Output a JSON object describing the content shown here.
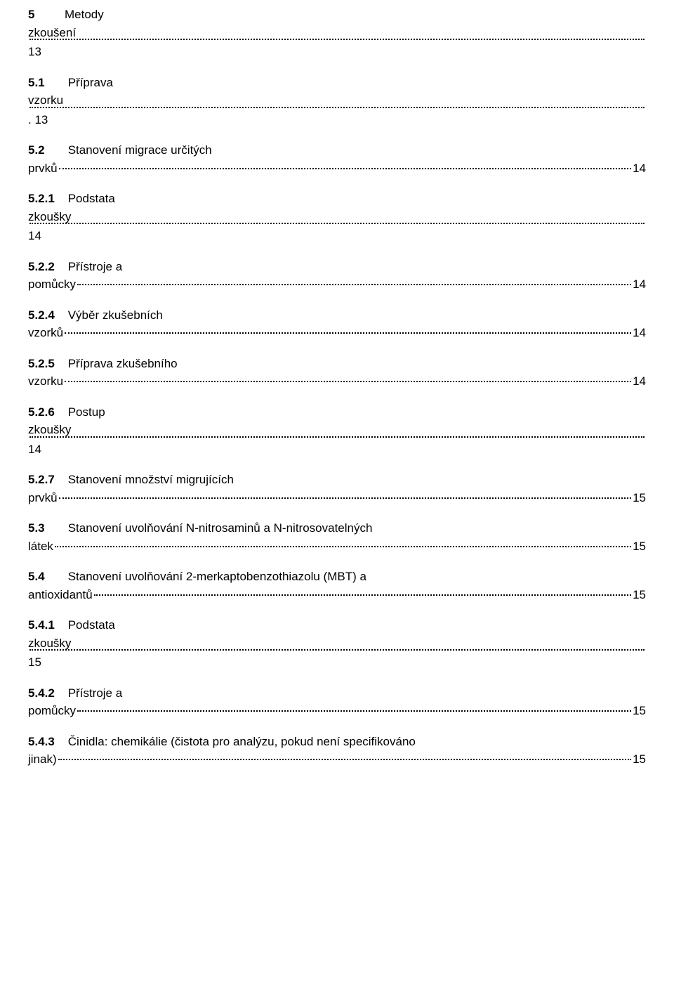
{
  "entries": [
    {
      "num": "5",
      "numBold": true,
      "gap": "         ",
      "title": "Metody",
      "wrap": "zkoušení",
      "dotsPrefix": "",
      "page": "",
      "pageLine3": "13",
      "line3Prefix": ""
    },
    {
      "num": "5.1",
      "numBold": true,
      "gap": "       ",
      "title": "Příprava",
      "wrap": "vzorku",
      "dotsPrefix": "",
      "page": "",
      "pageLine3": ". 13",
      "line3Prefix": ""
    },
    {
      "num": "5.2",
      "numBold": true,
      "gap": "       ",
      "title": "Stanovení migrace určitých",
      "wrap": "prvků",
      "dotsPrefix": "",
      "page": " 14",
      "pageLine3": ""
    },
    {
      "num": "5.2.1",
      "numBold": true,
      "gap": "    ",
      "title": "Podstata",
      "wrap": "zkoušky",
      "dotsPrefix": "",
      "page": "",
      "pageLine3": " 14",
      "line3Prefix": ""
    },
    {
      "num": "5.2.2",
      "numBold": true,
      "gap": "    ",
      "title": "Přístroje a",
      "wrap": "pomůcky",
      "dotsPrefix": "",
      "page": " 14",
      "pageLine3": ""
    },
    {
      "num": "5.2.4",
      "numBold": true,
      "gap": "    ",
      "title": "Výběr zkušebních",
      "wrap": "vzorků",
      "dotsPrefix": "",
      "page": " 14",
      "pageLine3": ""
    },
    {
      "num": "5.2.5",
      "numBold": true,
      "gap": "    ",
      "title": "Příprava zkušebního",
      "wrap": "vzorku",
      "dotsPrefix": "",
      "page": " 14",
      "pageLine3": ""
    },
    {
      "num": "5.2.6",
      "numBold": true,
      "gap": "    ",
      "title": "Postup",
      "wrap": "zkoušky",
      "dotsPrefix": "",
      "page": "",
      "pageLine3": "14",
      "line3Prefix": ""
    },
    {
      "num": "5.2.7",
      "numBold": true,
      "gap": "    ",
      "title": "Stanovení množství migrujících",
      "wrap": "prvků",
      "dotsPrefix": "",
      "page": " 15",
      "pageLine3": ""
    },
    {
      "num": "5.3",
      "numBold": true,
      "gap": "       ",
      "title": "Stanovení uvolňování N-nitrosaminů a N-nitrosovatelných",
      "wrap": "látek",
      "dotsPrefix": "",
      "page": " 15",
      "pageLine3": ""
    },
    {
      "num": "5.4",
      "numBold": true,
      "gap": "       ",
      "title": "Stanovení uvolňování 2-merkaptobenzothiazolu (MBT) a",
      "wrap": "antioxidantů",
      "dotsPrefix": "",
      "page": " 15",
      "pageLine3": ""
    },
    {
      "num": "5.4.1",
      "numBold": true,
      "gap": "    ",
      "title": "Podstata",
      "wrap": "zkoušky",
      "dotsPrefix": "",
      "page": "",
      "pageLine3": "15",
      "line3Prefix": ""
    },
    {
      "num": "5.4.2",
      "numBold": true,
      "gap": "    ",
      "title": "Přístroje a",
      "wrap": "pomůcky",
      "dotsPrefix": "",
      "page": " 15",
      "pageLine3": ""
    },
    {
      "num": "5.4.3",
      "numBold": true,
      "gap": "    ",
      "title": "Činidla: chemikálie (čistota pro analýzu, pokud není specifikováno",
      "wrap": "jinak)",
      "dotsPrefix": "",
      "page": " 15",
      "pageLine3": ""
    }
  ]
}
